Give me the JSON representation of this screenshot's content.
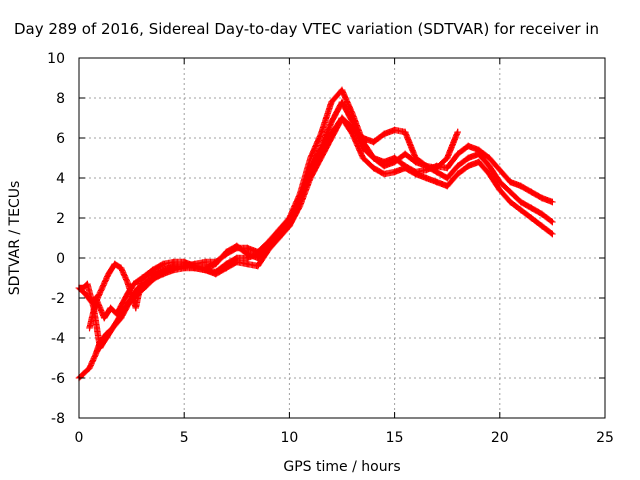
{
  "chart_data": {
    "type": "scatter",
    "title": "Day 289 of 2016, Sidereal Day-to-day VTEC variation (SDTVAR) for receiver in",
    "xlabel": "GPS time / hours",
    "ylabel": "SDTVAR / TECUs",
    "xlim": [
      0,
      25
    ],
    "ylim": [
      -8,
      10
    ],
    "xticks": [
      0,
      5,
      10,
      15,
      20,
      25
    ],
    "yticks": [
      -8,
      -6,
      -4,
      -2,
      0,
      2,
      4,
      6,
      8,
      10
    ],
    "grid": true,
    "marker": "+",
    "color": "#ff0000",
    "series": [
      {
        "x": [
          0.0,
          0.3,
          0.6,
          0.8,
          1.0,
          1.2,
          1.5,
          1.8,
          2.0,
          2.3,
          2.6,
          3.0,
          3.5,
          4.0,
          4.5,
          5.0,
          5.5,
          6.0,
          6.5,
          7.0,
          7.5,
          8.0,
          8.5,
          9.0,
          9.5,
          10.0,
          10.5,
          11.0,
          11.5,
          12.0,
          12.5,
          13.0,
          13.5,
          14.0,
          14.5,
          15.0,
          15.5,
          16.0,
          16.5,
          17.0,
          17.5,
          18.0,
          18.5,
          19.0,
          19.5,
          20.0,
          20.5,
          21.0,
          21.5,
          22.0,
          22.5
        ],
        "y": [
          -1.5,
          -1.8,
          -2.2,
          -2.0,
          -2.5,
          -3.0,
          -2.5,
          -2.8,
          -2.4,
          -1.8,
          -1.3,
          -1.0,
          -0.8,
          -0.6,
          -0.4,
          -0.4,
          -0.3,
          -0.2,
          -0.2,
          0.2,
          0.5,
          0.5,
          0.3,
          0.8,
          1.2,
          1.8,
          3.0,
          4.5,
          5.5,
          6.8,
          7.8,
          6.8,
          5.5,
          5.0,
          4.6,
          4.8,
          5.2,
          4.8,
          4.6,
          4.3,
          4.0,
          4.6,
          5.0,
          5.2,
          4.6,
          3.8,
          3.3,
          2.8,
          2.5,
          2.2,
          1.8
        ]
      },
      {
        "x": [
          0.0,
          0.2,
          0.5,
          0.8,
          1.0,
          1.3,
          1.6,
          1.9,
          2.2,
          2.5,
          2.8,
          3.2,
          3.6,
          4.0,
          4.5,
          5.0,
          5.5,
          6.0,
          6.5,
          7.0,
          7.5,
          8.0,
          8.5,
          9.0,
          9.5,
          10.0,
          10.5,
          11.0,
          11.5,
          12.0,
          12.5,
          13.0,
          13.5,
          14.0,
          14.5,
          15.0,
          15.5,
          16.0,
          16.5,
          17.0,
          17.5,
          18.0,
          18.5,
          19.0,
          19.5,
          20.0,
          20.5,
          21.0,
          21.5,
          22.0,
          22.5
        ],
        "y": [
          -6.0,
          -5.8,
          -5.5,
          -4.8,
          -4.2,
          -3.8,
          -3.5,
          -3.0,
          -2.5,
          -2.0,
          -1.5,
          -1.2,
          -1.0,
          -0.8,
          -0.6,
          -0.5,
          -0.5,
          -0.6,
          -0.8,
          -0.5,
          -0.2,
          -0.3,
          -0.4,
          0.4,
          1.0,
          1.6,
          2.6,
          4.0,
          5.0,
          6.0,
          7.0,
          6.2,
          5.0,
          4.5,
          4.2,
          4.3,
          4.5,
          4.2,
          4.0,
          3.8,
          3.6,
          4.2,
          4.6,
          4.8,
          4.2,
          3.4,
          2.8,
          2.4,
          2.0,
          1.6,
          1.2
        ]
      },
      {
        "x": [
          0.0,
          0.2,
          0.4,
          0.7,
          1.0,
          1.3,
          1.6,
          2.0,
          2.4,
          2.8,
          3.2,
          3.6,
          4.0,
          4.5,
          5.0,
          5.5,
          6.0,
          6.5,
          7.0,
          7.5,
          8.0,
          8.5,
          9.0,
          9.5,
          10.0,
          10.5,
          11.0,
          11.5,
          12.0,
          12.5,
          13.0,
          13.5,
          14.0,
          14.5,
          15.0,
          15.5,
          16.0,
          16.5,
          17.0,
          17.5,
          18.0,
          18.5,
          19.0,
          19.5,
          20.0,
          20.5,
          21.0,
          21.5,
          22.0,
          22.5
        ],
        "y": [
          -1.5,
          -1.5,
          -1.3,
          -2.5,
          -4.5,
          -4.0,
          -3.5,
          -3.0,
          -2.2,
          -1.8,
          -1.4,
          -1.0,
          -0.7,
          -0.5,
          -0.4,
          -0.5,
          -0.6,
          -0.7,
          -0.3,
          0.0,
          0.0,
          0.2,
          0.8,
          1.4,
          2.0,
          3.2,
          5.0,
          6.2,
          7.8,
          8.4,
          7.2,
          5.8,
          5.0,
          4.8,
          5.0,
          4.6,
          4.3,
          4.4,
          4.6,
          4.5,
          5.2,
          5.6,
          5.4,
          5.0,
          4.4,
          3.8,
          3.6,
          3.3,
          3.0,
          2.8
        ]
      },
      {
        "x": [
          0.5,
          0.8,
          1.1,
          1.4,
          1.7,
          2.0,
          2.3,
          2.7,
          3.0,
          3.5,
          4.0,
          4.5,
          5.0,
          5.5,
          6.0,
          6.5,
          7.0,
          7.5,
          8.0,
          8.5,
          9.0,
          9.5,
          10.0,
          10.5,
          11.0,
          11.5,
          12.0,
          12.5,
          13.0,
          13.5,
          14.0,
          14.5,
          15.0,
          15.5,
          16.0,
          16.5,
          17.0,
          17.5,
          18.0
        ],
        "y": [
          -3.5,
          -2.2,
          -1.5,
          -0.8,
          -0.3,
          -0.5,
          -1.2,
          -2.5,
          -1.0,
          -0.6,
          -0.3,
          -0.2,
          -0.2,
          -0.4,
          -0.5,
          -0.3,
          0.3,
          0.6,
          0.2,
          0.0,
          0.5,
          1.0,
          1.6,
          2.8,
          4.2,
          5.3,
          6.2,
          7.0,
          6.5,
          6.0,
          5.8,
          6.2,
          6.4,
          6.3,
          5.0,
          4.6,
          4.5,
          5.0,
          6.3
        ]
      }
    ]
  }
}
